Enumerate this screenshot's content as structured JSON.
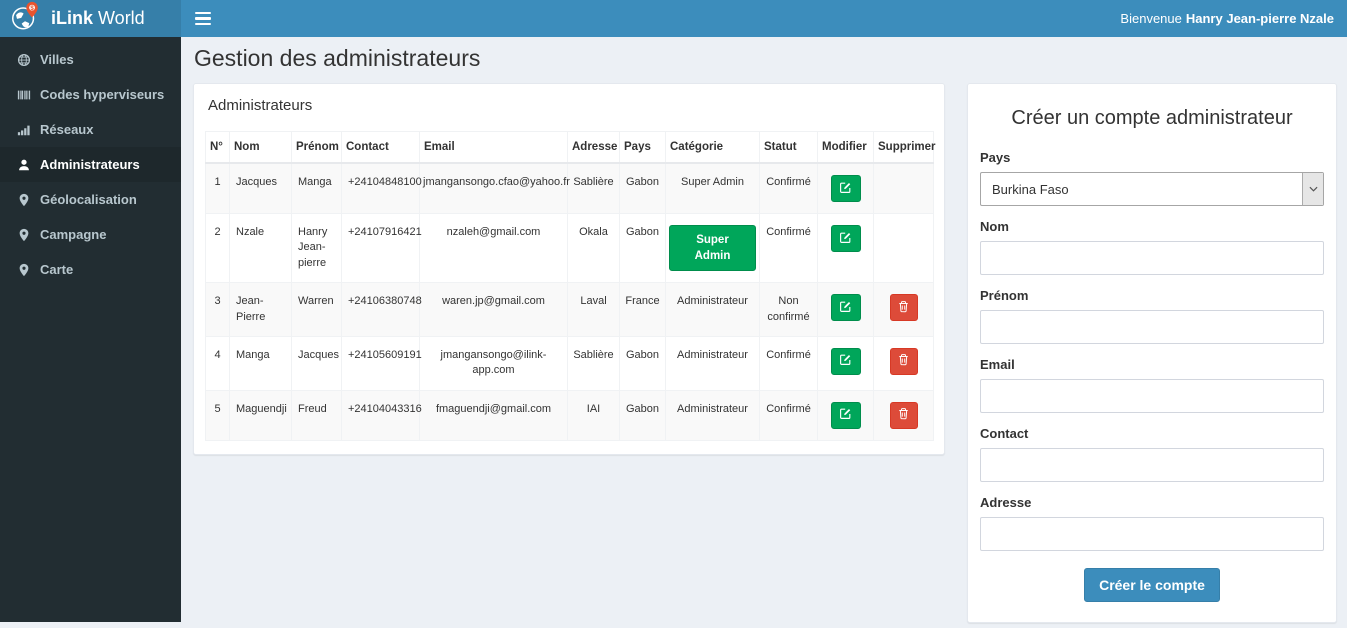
{
  "header": {
    "brand_bold": "iLink",
    "brand_light": " World",
    "welcome_prefix": "Bienvenue",
    "welcome_name": "Hanry Jean-pierre Nzale"
  },
  "sidebar": {
    "items": [
      {
        "label": "Villes",
        "icon": "globe-icon",
        "active": false
      },
      {
        "label": "Codes hyperviseurs",
        "icon": "barcode-icon",
        "active": false
      },
      {
        "label": "Réseaux",
        "icon": "signal-bars-icon",
        "active": false
      },
      {
        "label": "Administrateurs",
        "icon": "user-icon",
        "active": true
      },
      {
        "label": "Géolocalisation",
        "icon": "map-marker-icon",
        "active": false
      },
      {
        "label": "Campagne",
        "icon": "map-marker-icon",
        "active": false
      },
      {
        "label": "Carte",
        "icon": "map-marker-icon",
        "active": false
      }
    ]
  },
  "page": {
    "title": "Gestion des administrateurs"
  },
  "admin_table": {
    "panel_title": "Administrateurs",
    "columns": [
      "N°",
      "Nom",
      "Prénom",
      "Contact",
      "Email",
      "Adresse",
      "Pays",
      "Catégorie",
      "Statut",
      "Modifier",
      "Supprimer"
    ],
    "rows": [
      {
        "num": "1",
        "nom": "Jacques",
        "prenom": "Manga",
        "contact": "+24104848100",
        "email": "jmangansongo.cfao@yahoo.fr",
        "adresse": "Sablière",
        "pays": "Gabon",
        "categorie": "Super Admin",
        "categorie_style": "text",
        "statut": "Confirmé",
        "can_delete": false
      },
      {
        "num": "2",
        "nom": "Nzale",
        "prenom": "Hanry Jean-pierre",
        "contact": "+24107916421",
        "email": "nzaleh@gmail.com",
        "adresse": "Okala",
        "pays": "Gabon",
        "categorie": "Super Admin",
        "categorie_style": "button",
        "statut": "Confirmé",
        "can_delete": false
      },
      {
        "num": "3",
        "nom": "Jean-Pierre",
        "prenom": "Warren",
        "contact": "+24106380748",
        "email": "waren.jp@gmail.com",
        "adresse": "Laval",
        "pays": "France",
        "categorie": "Administrateur",
        "categorie_style": "text",
        "statut": "Non confirmé",
        "can_delete": true
      },
      {
        "num": "4",
        "nom": "Manga",
        "prenom": "Jacques",
        "contact": "+24105609191",
        "email": "jmangansongo@ilink-app.com",
        "adresse": "Sablière",
        "pays": "Gabon",
        "categorie": "Administrateur",
        "categorie_style": "text",
        "statut": "Confirmé",
        "can_delete": true
      },
      {
        "num": "5",
        "nom": "Maguendji",
        "prenom": "Freud",
        "contact": "+24104043316",
        "email": "fmaguendji@gmail.com",
        "adresse": "IAI",
        "pays": "Gabon",
        "categorie": "Administrateur",
        "categorie_style": "text",
        "statut": "Confirmé",
        "can_delete": true
      }
    ]
  },
  "create_form": {
    "title": "Créer un compte administrateur",
    "fields": [
      {
        "label": "Pays",
        "type": "select",
        "value": "Burkina Faso"
      },
      {
        "label": "Nom",
        "type": "text",
        "value": ""
      },
      {
        "label": "Prénom",
        "type": "text",
        "value": ""
      },
      {
        "label": "Email",
        "type": "text",
        "value": ""
      },
      {
        "label": "Contact",
        "type": "text",
        "value": ""
      },
      {
        "label": "Adresse",
        "type": "text",
        "value": ""
      }
    ],
    "submit_label": "Créer le compte"
  },
  "colors": {
    "navbar": "#3c8dbc",
    "logo_bg": "#367fa9",
    "sidebar_bg": "#222d32",
    "sidebar_active_bg": "#1e282c",
    "sidebar_text": "#b8c7ce",
    "content_bg": "#ecf0f5",
    "success_green": "#00a65a",
    "danger_red": "#dd4b39",
    "pin_orange": "#e8542e"
  }
}
